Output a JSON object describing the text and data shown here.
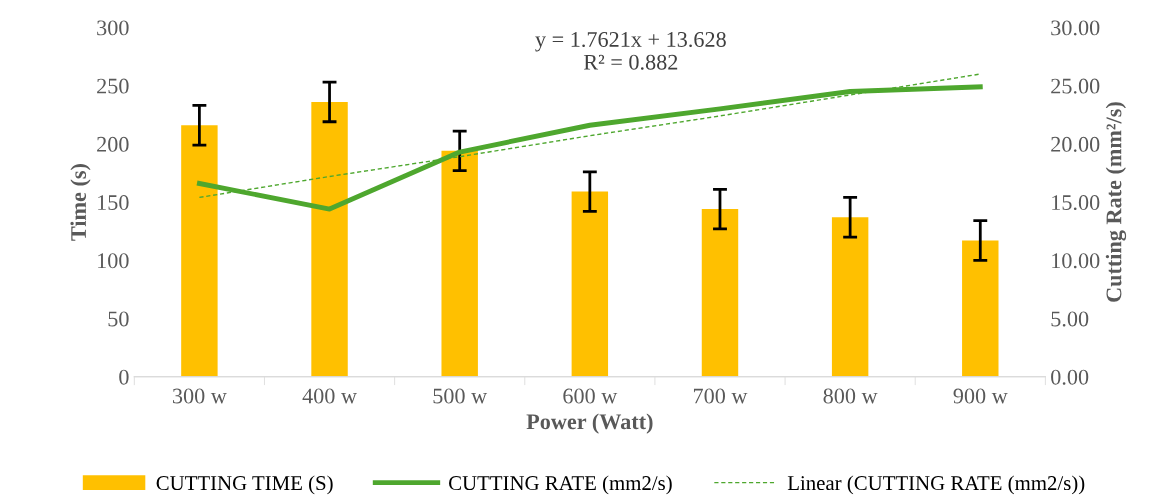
{
  "chart_data": {
    "type": "bar",
    "xlabel": "Power (Watt)",
    "ylabel": "Time (s)",
    "y2label": "Cutting Rate (mm²/s)",
    "categories": [
      "300 w",
      "400 w",
      "500 w",
      "600 w",
      "700 w",
      "800 w",
      "900 w"
    ],
    "series": [
      {
        "name": "CUTTING TIME (S)",
        "color": "#ffc000",
        "values": [
          216,
          236,
          194,
          159,
          144,
          137,
          117
        ],
        "errors": [
          17,
          17,
          17,
          17,
          17,
          17,
          17
        ]
      },
      {
        "name": "CUTTING RATE (mm2/s)",
        "type": "line",
        "axis": "y2",
        "color": "#4ea72e",
        "values": [
          16.6,
          14.4,
          19.3,
          21.6,
          23.0,
          24.5,
          24.9
        ]
      },
      {
        "name": "Linear (CUTTING RATE (mm2/s))",
        "type": "line",
        "axis": "y2",
        "color": "#4ea72e",
        "line_style": "dashed",
        "values": [
          15.4,
          17.2,
          18.9,
          20.7,
          22.4,
          24.2,
          26.0
        ]
      }
    ],
    "ylim": [
      0,
      300
    ],
    "yticks": [
      0,
      50,
      100,
      150,
      200,
      250,
      300
    ],
    "y2lim": [
      0,
      30
    ],
    "y2ticks": [
      {
        "value": 0,
        "label": "0.00"
      },
      {
        "value": 5,
        "label": "5.00"
      },
      {
        "value": 10,
        "label": "10.00"
      },
      {
        "value": 15,
        "label": "15.00"
      },
      {
        "value": 20,
        "label": "20.00"
      },
      {
        "value": 25,
        "label": "25.00"
      },
      {
        "value": 30,
        "label": "30.00"
      }
    ],
    "annotations": [
      "y = 1.7621x + 13.628",
      "R² = 0.882"
    ],
    "grid": false,
    "legend": "bottom"
  }
}
